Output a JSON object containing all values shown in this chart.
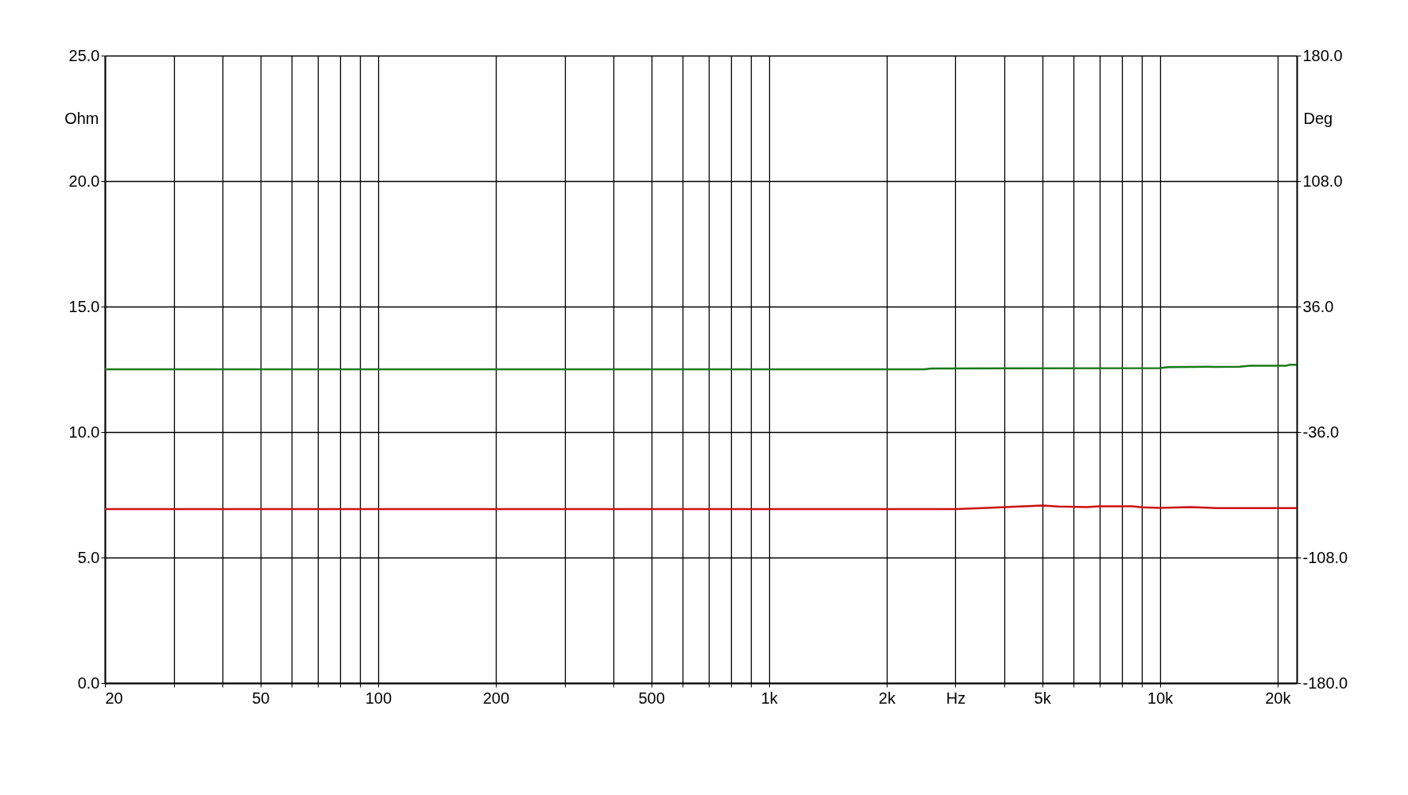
{
  "chart_data": {
    "type": "line",
    "ylabel": "Ohm",
    "y2label": "Deg",
    "xlim": [
      20,
      22400
    ],
    "xticks": [
      {
        "value": 20,
        "label": "20"
      },
      {
        "value": 30,
        "label": null
      },
      {
        "value": 40,
        "label": null
      },
      {
        "value": 50,
        "label": "50"
      },
      {
        "value": 60,
        "label": null
      },
      {
        "value": 70,
        "label": null
      },
      {
        "value": 80,
        "label": null
      },
      {
        "value": 90,
        "label": null
      },
      {
        "value": 100,
        "label": "100"
      },
      {
        "value": 200,
        "label": "200"
      },
      {
        "value": 300,
        "label": null
      },
      {
        "value": 400,
        "label": null
      },
      {
        "value": 500,
        "label": "500"
      },
      {
        "value": 600,
        "label": null
      },
      {
        "value": 700,
        "label": null
      },
      {
        "value": 800,
        "label": null
      },
      {
        "value": 900,
        "label": null
      },
      {
        "value": 1000,
        "label": "1k"
      },
      {
        "value": 2000,
        "label": "2k"
      },
      {
        "value": 3000,
        "label": "Hz"
      },
      {
        "value": 4000,
        "label": null
      },
      {
        "value": 5000,
        "label": "5k"
      },
      {
        "value": 6000,
        "label": null
      },
      {
        "value": 7000,
        "label": null
      },
      {
        "value": 8000,
        "label": null
      },
      {
        "value": 9000,
        "label": null
      },
      {
        "value": 10000,
        "label": "10k"
      },
      {
        "value": 20000,
        "label": "20k"
      }
    ],
    "log": "x",
    "ylim": [
      0,
      25
    ],
    "yticks": [
      {
        "value": 0,
        "label": "0.0"
      },
      {
        "value": 5,
        "label": "5.0"
      },
      {
        "value": 10,
        "label": "10.0"
      },
      {
        "value": 15,
        "label": "15.0"
      },
      {
        "value": 20,
        "label": "20.0"
      },
      {
        "value": 25,
        "label": "25.0"
      }
    ],
    "y2lim": [
      -180,
      180
    ],
    "y2ticks": [
      {
        "value": -180,
        "label": "-180.0"
      },
      {
        "value": -108,
        "label": "-108.0"
      },
      {
        "value": -36,
        "label": "-36.0"
      },
      {
        "value": 36,
        "label": "36.0"
      },
      {
        "value": 108,
        "label": "108.0"
      },
      {
        "value": 180,
        "label": "180.0"
      }
    ],
    "grid": true,
    "marker": "none",
    "line_style": "solid",
    "series": [
      {
        "color": "#cc1111",
        "x": [
          20,
          3000,
          3500,
          4500,
          5000,
          5500,
          6500,
          7000,
          8500,
          9000,
          10000,
          12000,
          14000,
          22400
        ],
        "values": [
          6.93,
          6.93,
          6.97,
          7.04,
          7.07,
          7.03,
          7.01,
          7.04,
          7.04,
          7.0,
          6.98,
          7.01,
          6.97,
          6.97
        ]
      },
      {
        "color": "#1a7a1a",
        "axis": "y2",
        "x": [
          20,
          2500,
          2600,
          10000,
          10500,
          16000,
          17000,
          21000,
          21500,
          22400
        ],
        "values": [
          0,
          0,
          0.5,
          0.7,
          1.3,
          1.5,
          2.0,
          2.0,
          2.6,
          2.6
        ]
      }
    ]
  }
}
